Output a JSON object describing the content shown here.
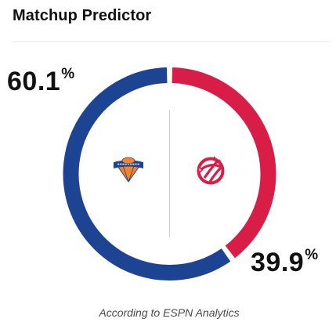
{
  "widget": {
    "title": "Matchup Predictor",
    "source_note": "According to ESPN Analytics"
  },
  "predictor": {
    "teams": [
      {
        "side": "left",
        "logo_icon": "knicks-logo-icon",
        "win_probability": 60.1,
        "probability_value": "60.1",
        "probability_unit": "%",
        "color": "#1d4393"
      },
      {
        "side": "right",
        "logo_icon": "raptors-logo-icon",
        "win_probability": 39.9,
        "probability_value": "39.9",
        "probability_unit": "%",
        "color": "#d81d47"
      }
    ]
  }
}
